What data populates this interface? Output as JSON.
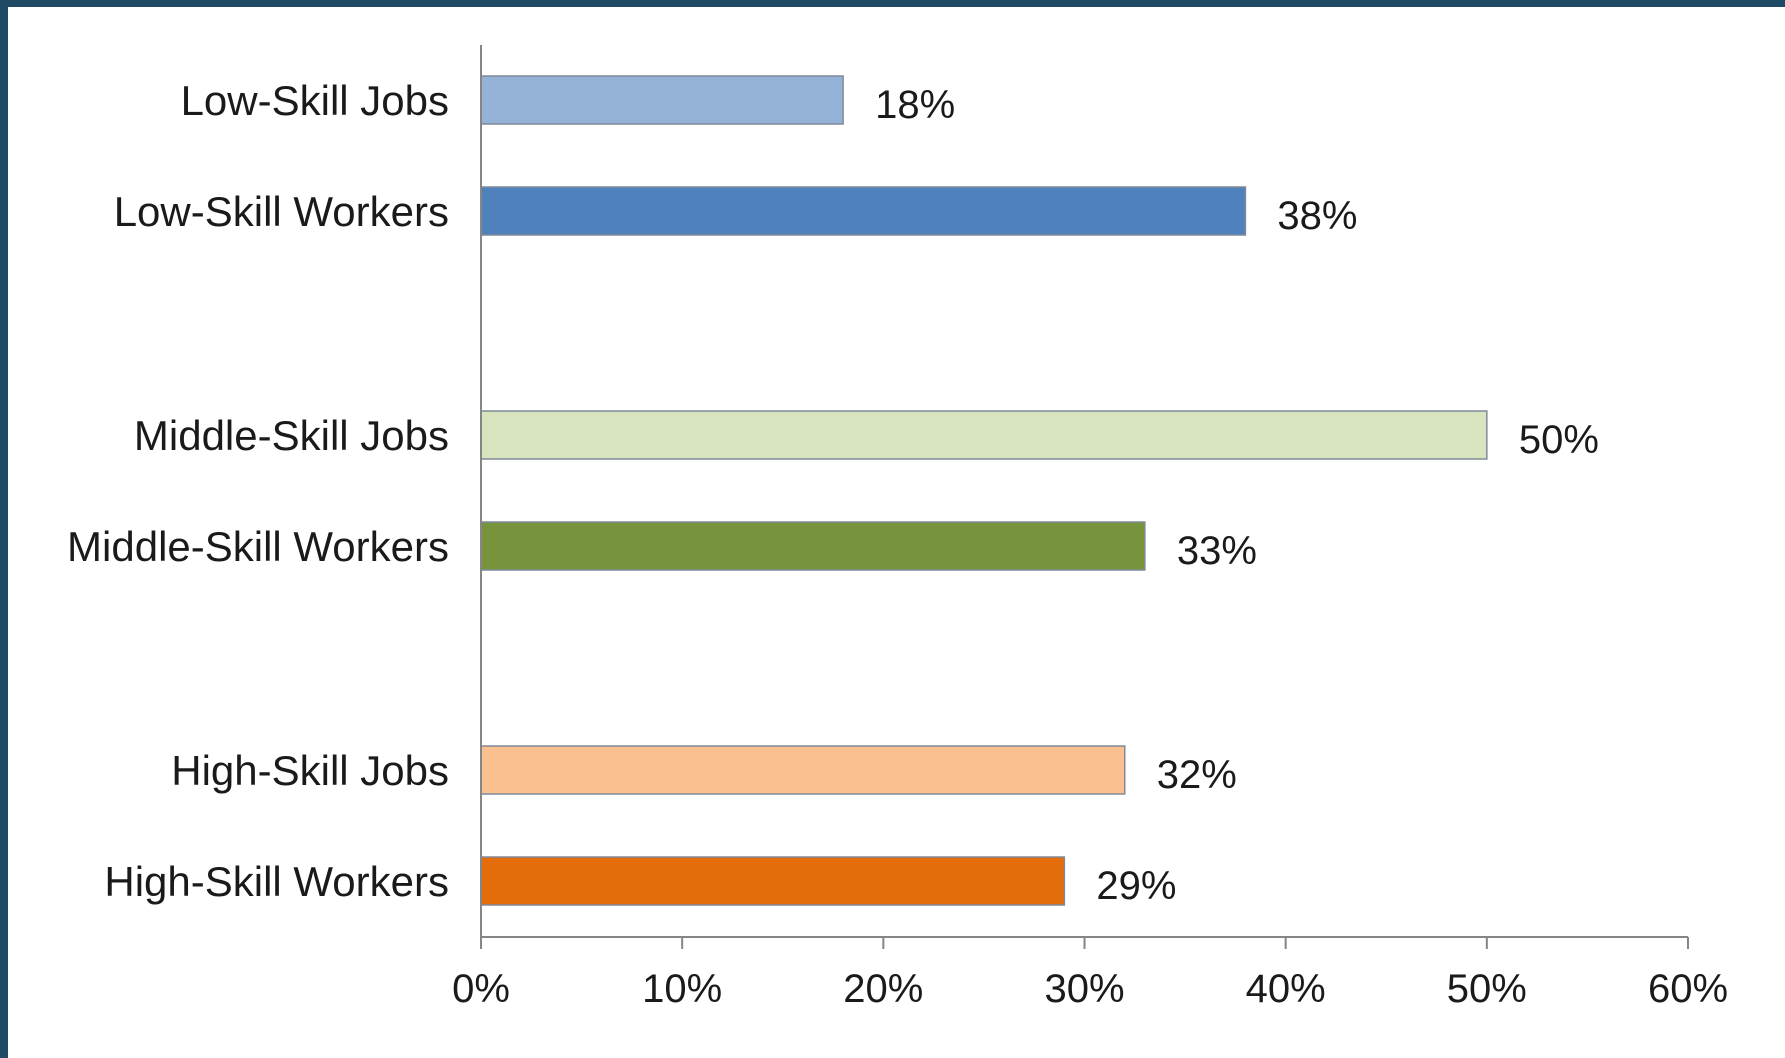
{
  "chart_data": {
    "type": "bar",
    "orientation": "horizontal",
    "categories": [
      "Low-Skill Jobs",
      "Low-Skill Workers",
      "Middle-Skill Jobs",
      "Middle-Skill Workers",
      "High-Skill Jobs",
      "High-Skill Workers"
    ],
    "values": [
      18,
      38,
      50,
      33,
      32,
      29
    ],
    "data_labels": [
      "18%",
      "38%",
      "50%",
      "33%",
      "32%",
      "29%"
    ],
    "colors": [
      "#95b3d7",
      "#4f81bd",
      "#d7e4bd",
      "#77933c",
      "#fac090",
      "#e46c0a"
    ],
    "xlim": [
      0,
      60
    ],
    "x_ticks": [
      0,
      10,
      20,
      30,
      40,
      50,
      60
    ],
    "x_tick_labels": [
      "0%",
      "10%",
      "20%",
      "30%",
      "40%",
      "50%",
      "60%"
    ],
    "title": "",
    "xlabel": "",
    "ylabel": "",
    "grid": false,
    "legend": false
  }
}
